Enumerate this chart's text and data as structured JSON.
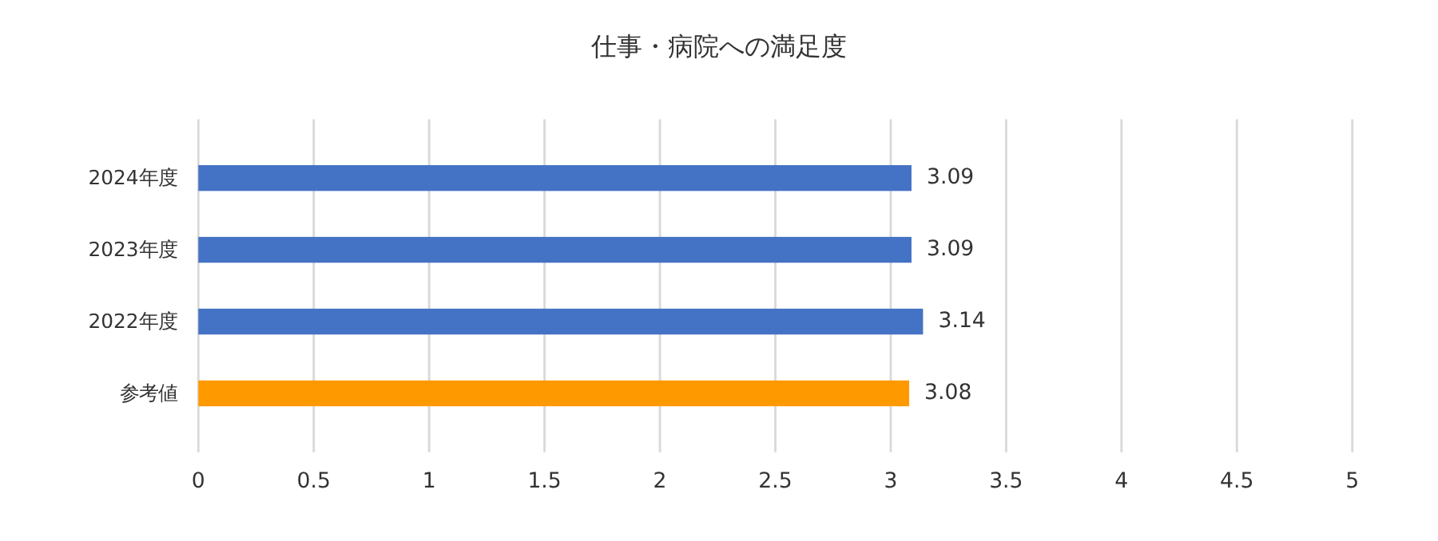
{
  "chart_data": {
    "type": "bar",
    "orientation": "horizontal",
    "title": "仕事・病院への満足度",
    "categories": [
      "2024年度",
      "2023年度",
      "2022年度",
      "参考値"
    ],
    "values": [
      3.09,
      3.09,
      3.14,
      3.08
    ],
    "colors": [
      "#4472c4",
      "#4472c4",
      "#4472c4",
      "#ff9900"
    ],
    "xlim": [
      0,
      5
    ],
    "xticks": [
      0,
      0.5,
      1,
      1.5,
      2,
      2.5,
      3,
      3.5,
      4,
      4.5,
      5
    ],
    "grid": "x",
    "data_labels": true
  }
}
